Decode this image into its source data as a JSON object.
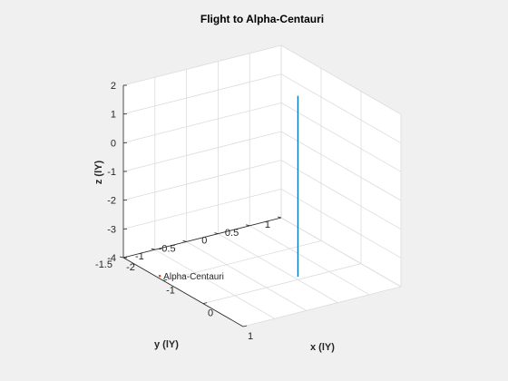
{
  "chart_data": {
    "type": "line3d",
    "title": "Flight to Alpha-Centauri",
    "xlabel": "x (lY)",
    "ylabel": "y (lY)",
    "zlabel": "z (lY)",
    "xlim": [
      -2,
      1
    ],
    "ylim": [
      -1.5,
      1
    ],
    "zlim": [
      -4,
      2
    ],
    "xticks": [
      -2,
      -1,
      0,
      1
    ],
    "yticks": [
      -1.5,
      -1,
      -0.5,
      0,
      0.5,
      1
    ],
    "zticks": [
      -4,
      -3,
      -2,
      -1,
      0,
      1,
      2
    ],
    "xtick_labels": [
      "-2",
      "-1",
      "0",
      "1"
    ],
    "ytick_labels": [
      "-1.5",
      "-1",
      "-0.5",
      "0",
      "0.5",
      "1"
    ],
    "ztick_labels": [
      "-4",
      "-3",
      "-2",
      "-1",
      "0",
      "1",
      "2"
    ],
    "grid": true,
    "series": [
      {
        "color": "#0072BD",
        "x": [
          0,
          0
        ],
        "y": [
          0,
          0
        ],
        "z": [
          -3.9,
          2.4
        ]
      }
    ],
    "annotations": [
      {
        "text": "Alpha-Centauri",
        "x": -1.34,
        "y": -1.34,
        "z": -4.2,
        "marker_color": "#D95319"
      }
    ]
  }
}
